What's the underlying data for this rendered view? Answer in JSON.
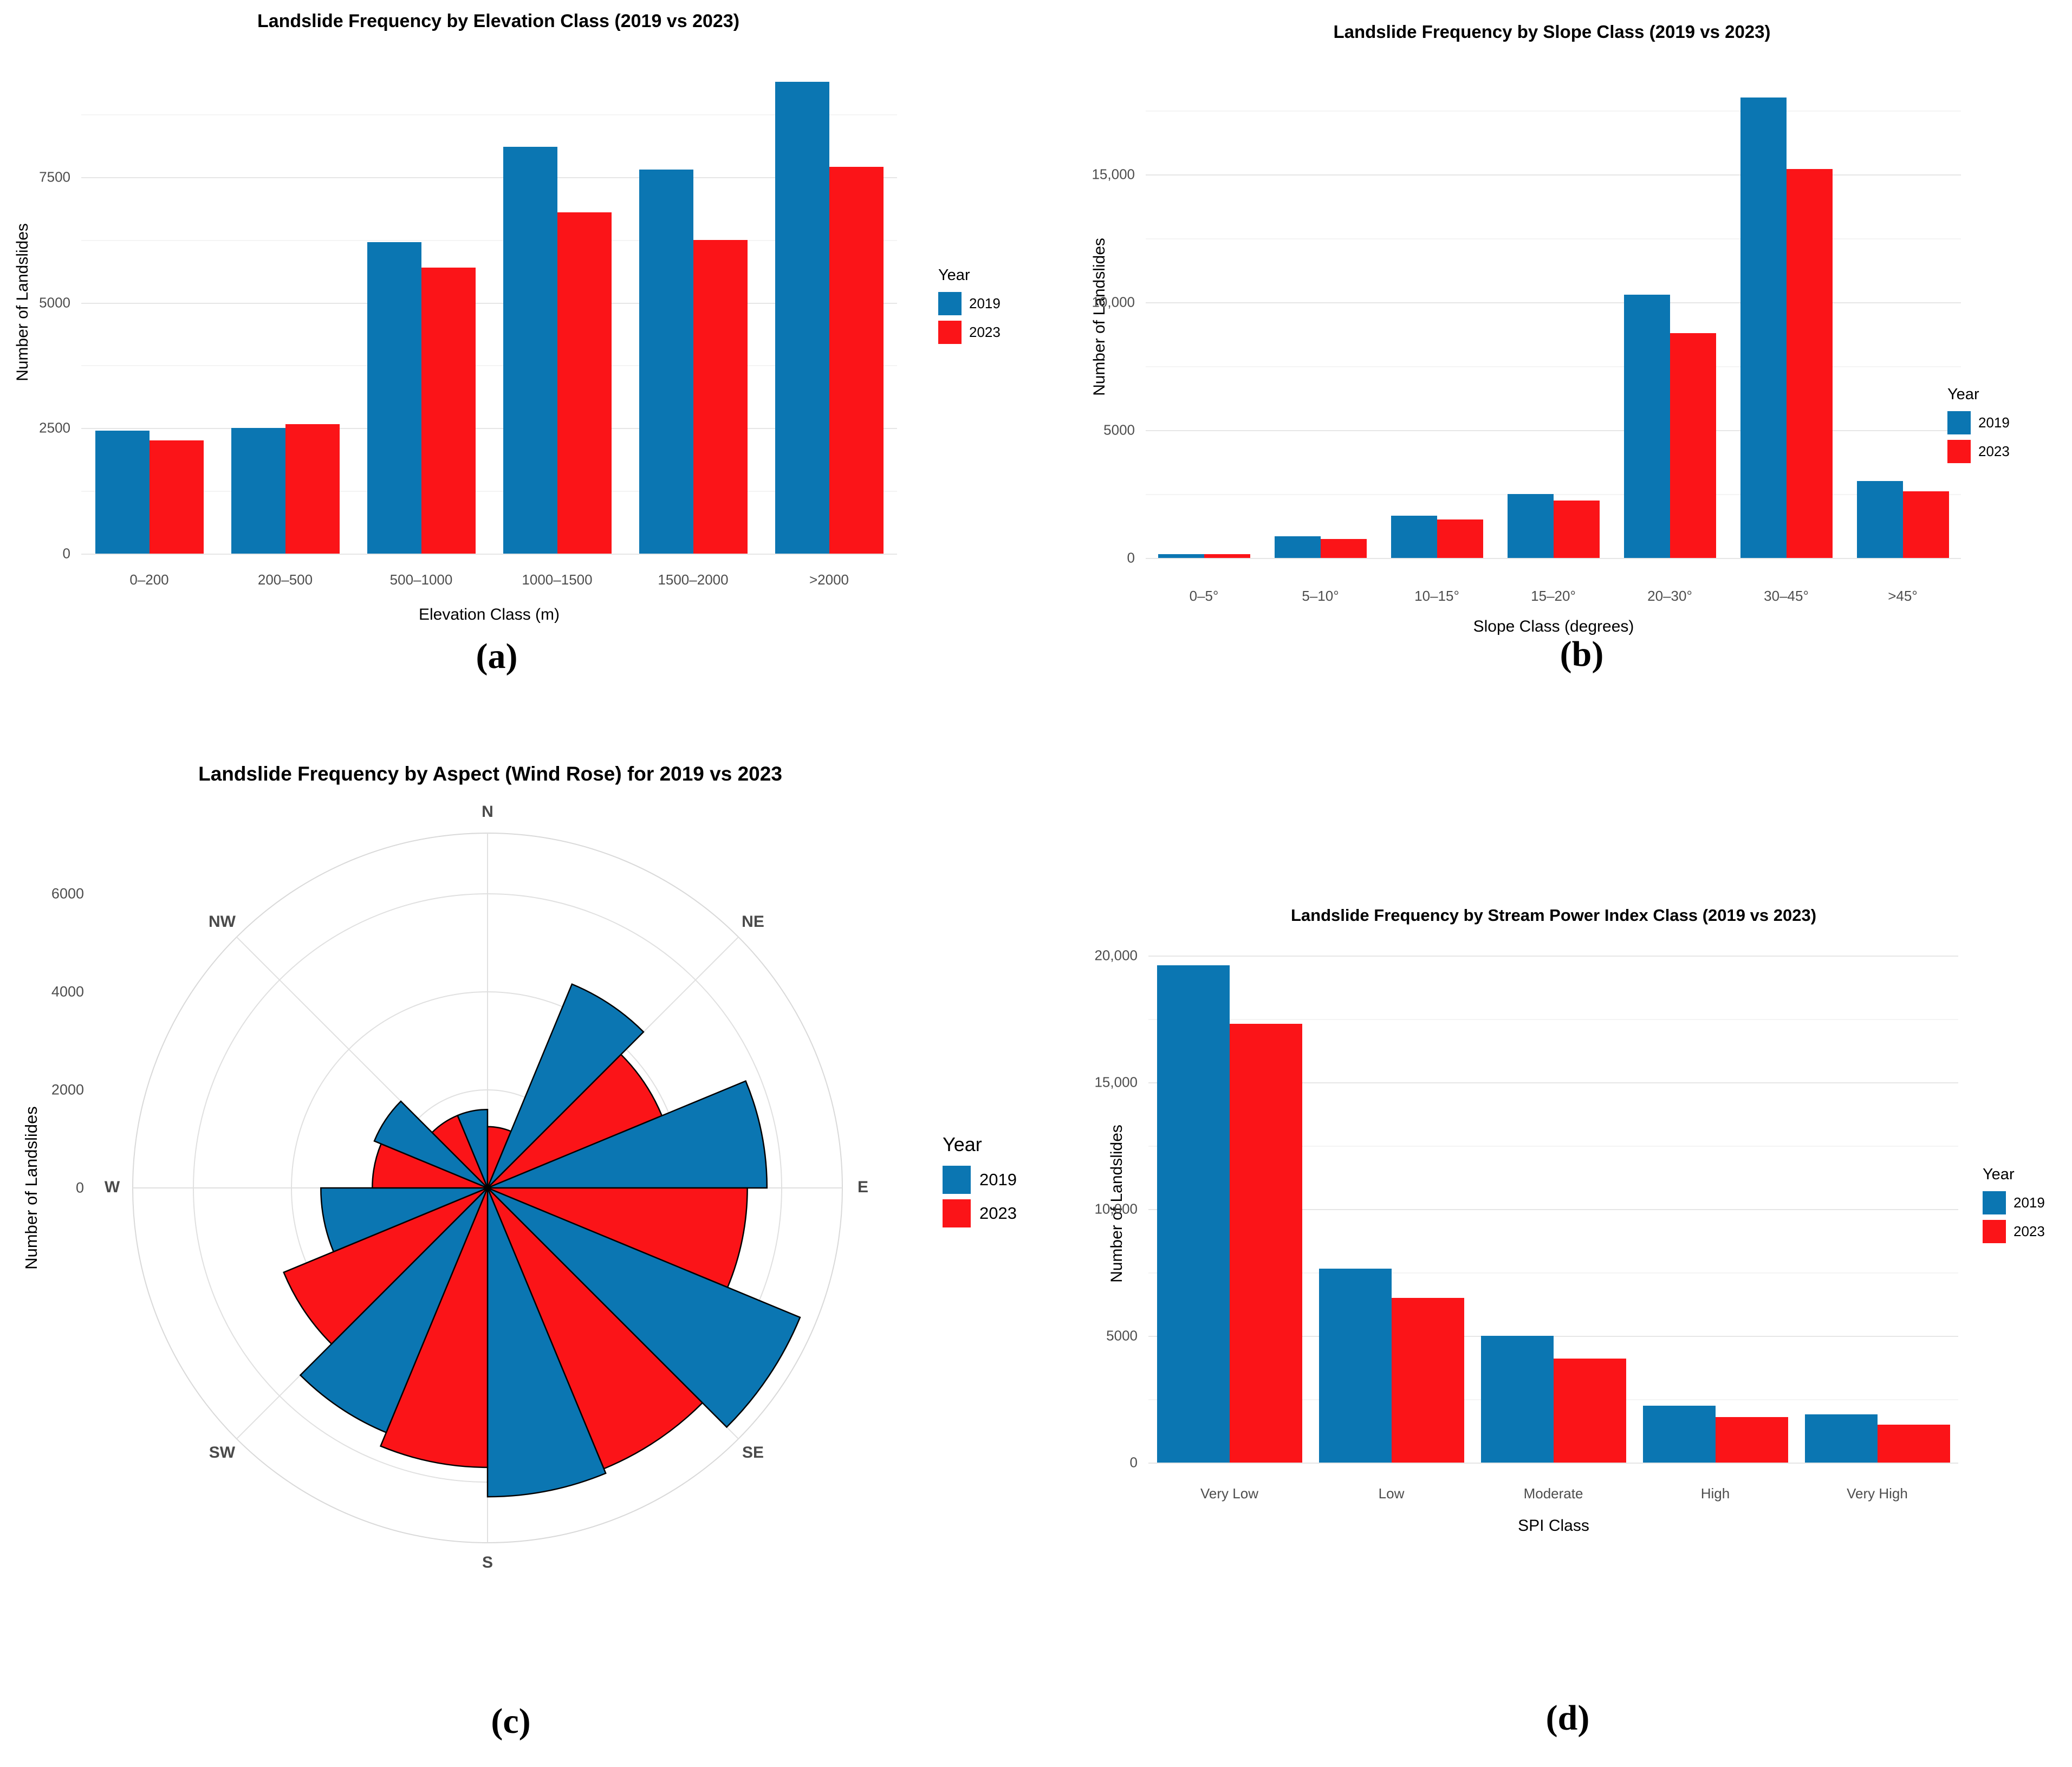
{
  "legend": {
    "title": "Year",
    "items": [
      {
        "label": "2019",
        "color": "#0B76B2"
      },
      {
        "label": "2023",
        "color": "#FB1418"
      }
    ]
  },
  "captions": {
    "a": "(a)",
    "b": "(b)",
    "c": "(c)",
    "d": "(d)"
  },
  "colors": {
    "year2019": "#0B76B2",
    "year2023": "#FB1418",
    "grid_major": "#e6e6e6",
    "grid_minor": "#f4f4f4",
    "tick_text": "#4d4d4d",
    "rose_grid": "#e0e0e0"
  },
  "chart_data": [
    {
      "id": "a",
      "type": "bar",
      "title": "Landslide Frequency by Elevation Class (2019 vs 2023)",
      "xlabel": "Elevation Class (m)",
      "ylabel": "Number of Landslides",
      "categories": [
        "0–200",
        "200–500",
        "500–1000",
        "1000–1500",
        "1500–2000",
        ">2000"
      ],
      "series": [
        {
          "name": "2019",
          "values": [
            2450,
            2500,
            6200,
            8100,
            7650,
            9400
          ]
        },
        {
          "name": "2023",
          "values": [
            2250,
            2580,
            5700,
            6800,
            6250,
            7700
          ]
        }
      ],
      "ylim": [
        0,
        10000
      ],
      "yticks": [
        0,
        2500,
        5000,
        7500
      ],
      "ytick_labels": [
        "0",
        "2500",
        "5000",
        "7500"
      ],
      "grid": "on",
      "legend_position": "right"
    },
    {
      "id": "b",
      "type": "bar",
      "title": "Landslide Frequency by Slope Class (2019 vs 2023)",
      "xlabel": "Slope Class (degrees)",
      "ylabel": "Number of Landslides",
      "categories": [
        "0–5°",
        "5–10°",
        "10–15°",
        "15–20°",
        "20–30°",
        "30–45°",
        ">45°"
      ],
      "series": [
        {
          "name": "2019",
          "values": [
            150,
            850,
            1650,
            2500,
            10300,
            18000,
            3000
          ]
        },
        {
          "name": "2023",
          "values": [
            150,
            750,
            1500,
            2250,
            8800,
            15200,
            2600
          ]
        }
      ],
      "ylim": [
        0,
        18850
      ],
      "yticks": [
        0,
        5000,
        10000,
        15000
      ],
      "ytick_labels": [
        "0",
        "5000",
        "10,000",
        "15,000"
      ],
      "grid": "on",
      "legend_position": "right"
    },
    {
      "id": "c",
      "type": "wind-rose",
      "title": "Landslide Frequency by Aspect (Wind Rose) for 2019 vs 2023",
      "ylabel": "Number of Landslides",
      "directions": [
        "N",
        "NE",
        "E",
        "SE",
        "S",
        "SW",
        "W",
        "NW"
      ],
      "series": [
        {
          "name": "2019",
          "values": [
            1600,
            4500,
            5700,
            6900,
            6300,
            5400,
            3400,
            2500
          ]
        },
        {
          "name": "2023",
          "values": [
            1250,
            3850,
            5300,
            6200,
            5700,
            4500,
            2350,
            1600
          ]
        }
      ],
      "rticks": [
        0,
        2000,
        4000,
        6000
      ],
      "rtick_labels": [
        "0",
        "2000",
        "4000",
        "6000"
      ],
      "rlim": [
        0,
        7200
      ],
      "grid": "on",
      "legend_position": "right"
    },
    {
      "id": "d",
      "type": "bar",
      "title": "Landslide Frequency by Stream Power Index Class (2019 vs 2023)",
      "xlabel": "SPI Class",
      "ylabel": "Number of Landslides",
      "categories": [
        "Very Low",
        "Low",
        "Moderate",
        "High",
        "Very High"
      ],
      "series": [
        {
          "name": "2019",
          "values": [
            19600,
            7650,
            5000,
            2250,
            1900
          ]
        },
        {
          "name": "2023",
          "values": [
            17300,
            6500,
            4100,
            1800,
            1500
          ]
        }
      ],
      "ylim": [
        0,
        20400
      ],
      "yticks": [
        0,
        5000,
        10000,
        15000,
        20000
      ],
      "ytick_labels": [
        "0",
        "5000",
        "10,000",
        "15,000",
        "20,000"
      ],
      "grid": "on",
      "legend_position": "right"
    }
  ]
}
